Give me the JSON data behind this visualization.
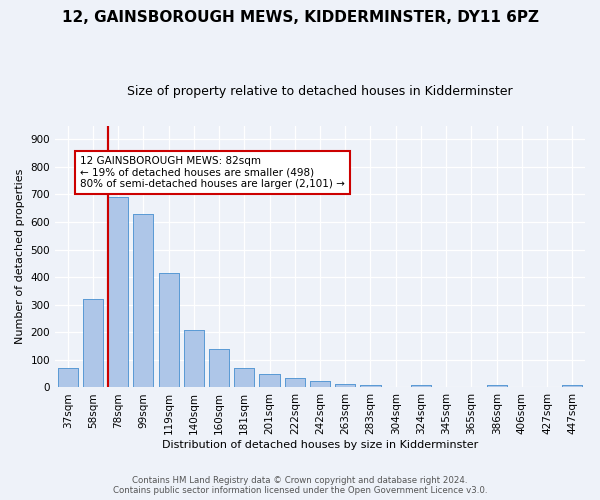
{
  "title": "12, GAINSBOROUGH MEWS, KIDDERMINSTER, DY11 6PZ",
  "subtitle": "Size of property relative to detached houses in Kidderminster",
  "xlabel": "Distribution of detached houses by size in Kidderminster",
  "ylabel": "Number of detached properties",
  "categories": [
    "37sqm",
    "58sqm",
    "78sqm",
    "99sqm",
    "119sqm",
    "140sqm",
    "160sqm",
    "181sqm",
    "201sqm",
    "222sqm",
    "242sqm",
    "263sqm",
    "283sqm",
    "304sqm",
    "324sqm",
    "345sqm",
    "365sqm",
    "386sqm",
    "406sqm",
    "427sqm",
    "447sqm"
  ],
  "values": [
    70,
    320,
    690,
    630,
    415,
    210,
    138,
    70,
    48,
    35,
    24,
    14,
    10,
    0,
    8,
    0,
    0,
    8,
    0,
    0,
    8
  ],
  "bar_color": "#aec6e8",
  "bar_edge_color": "#5b9bd5",
  "vline_x_index": 2,
  "vline_color": "#cc0000",
  "annotation_text": "12 GAINSBOROUGH MEWS: 82sqm\n← 19% of detached houses are smaller (498)\n80% of semi-detached houses are larger (2,101) →",
  "annotation_box_color": "#ffffff",
  "annotation_box_edge": "#cc0000",
  "ylim": [
    0,
    950
  ],
  "yticks": [
    0,
    100,
    200,
    300,
    400,
    500,
    600,
    700,
    800,
    900
  ],
  "footer_line1": "Contains HM Land Registry data © Crown copyright and database right 2024.",
  "footer_line2": "Contains public sector information licensed under the Open Government Licence v3.0.",
  "bg_color": "#eef2f9",
  "plot_bg_color": "#eef2f9",
  "grid_color": "#ffffff",
  "title_fontsize": 11,
  "subtitle_fontsize": 9,
  "ylabel_fontsize": 8,
  "xlabel_fontsize": 8,
  "tick_fontsize": 7.5,
  "footer_fontsize": 6.2
}
